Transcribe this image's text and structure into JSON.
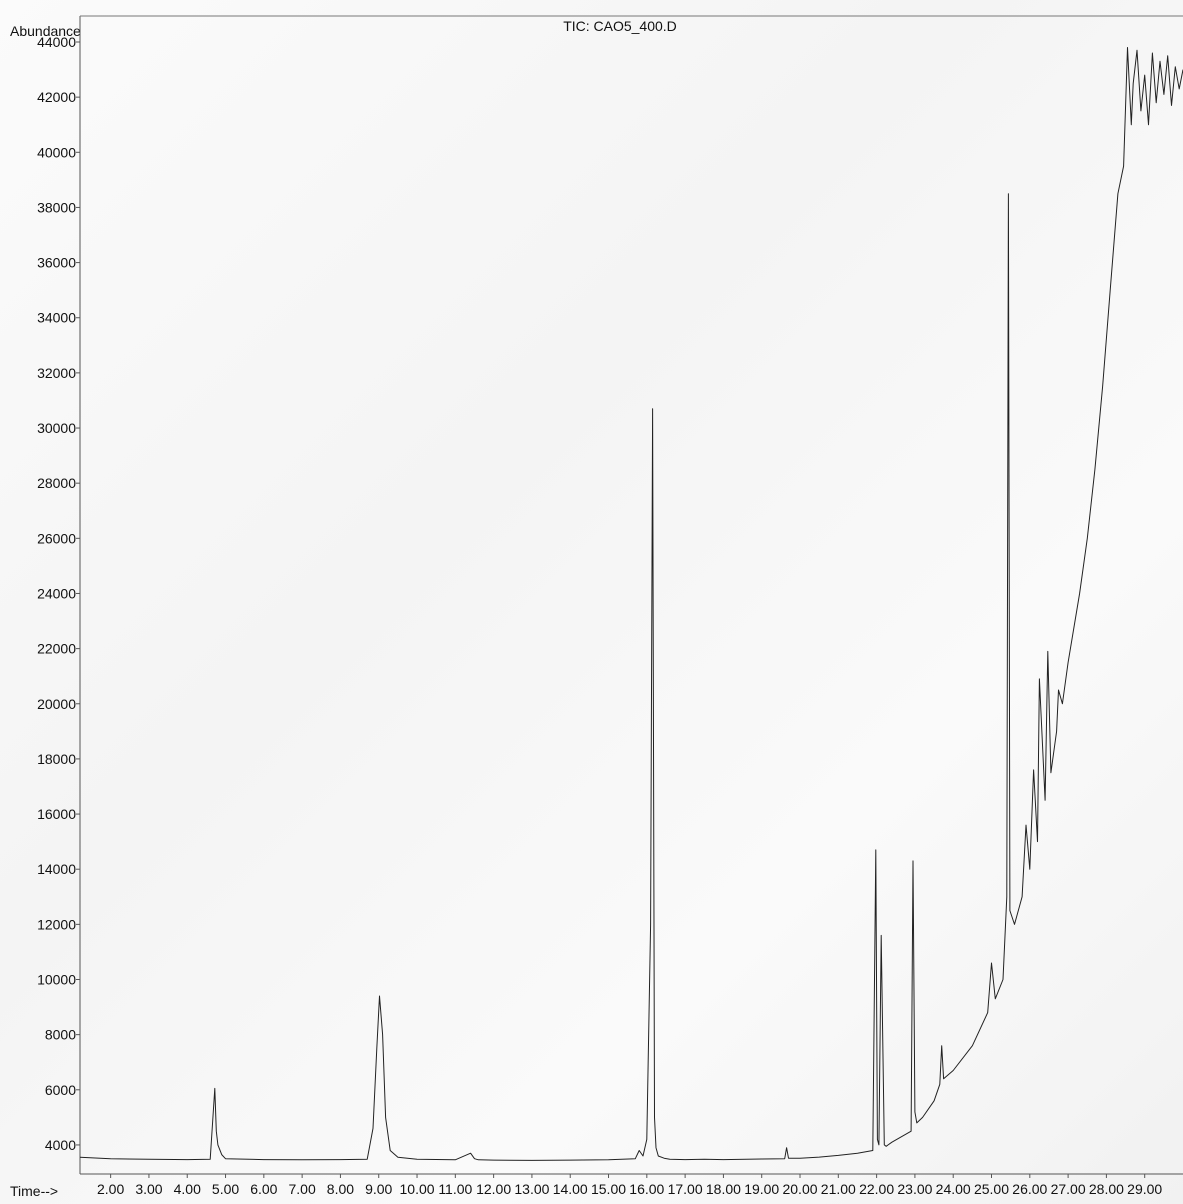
{
  "chart_data": {
    "type": "line",
    "title": "TIC: CAO5_400.D",
    "ylabel": "Abundance",
    "xlabel": "Time-->",
    "xlim": [
      1.2,
      30.0
    ],
    "ylim": [
      3200,
      44000
    ],
    "x_ticks": [
      "2.00",
      "3.00",
      "4.00",
      "5.00",
      "6.00",
      "7.00",
      "8.00",
      "9.00",
      "10.00",
      "11.00",
      "12.00",
      "13.00",
      "14.00",
      "15.00",
      "16.00",
      "17.00",
      "18.00",
      "19.00",
      "20.00",
      "21.00",
      "22.00",
      "23.00",
      "24.00",
      "25.00",
      "26.00",
      "27.00",
      "28.00",
      "29.00"
    ],
    "y_ticks": [
      "4000",
      "6000",
      "8000",
      "10000",
      "12000",
      "14000",
      "16000",
      "18000",
      "20000",
      "22000",
      "24000",
      "26000",
      "28000",
      "30000",
      "32000",
      "34000",
      "36000",
      "38000",
      "40000",
      "42000",
      "44000"
    ],
    "grid": false,
    "series": [
      {
        "color": "#222222",
        "x": [
          1.2,
          2.0,
          3.0,
          4.0,
          4.6,
          4.72,
          4.76,
          4.8,
          4.9,
          5.0,
          6.0,
          7.0,
          8.0,
          8.7,
          8.85,
          8.95,
          9.02,
          9.1,
          9.18,
          9.3,
          9.5,
          10.0,
          11.0,
          11.4,
          11.5,
          11.6,
          12.0,
          13.0,
          14.0,
          15.0,
          15.7,
          15.8,
          15.9,
          16.0,
          16.1,
          16.15,
          16.2,
          16.24,
          16.3,
          16.45,
          16.6,
          17.0,
          17.5,
          18.0,
          19.0,
          19.6,
          19.65,
          19.7,
          20.0,
          20.5,
          21.0,
          21.5,
          21.9,
          21.98,
          22.02,
          22.06,
          22.12,
          22.2,
          22.25,
          22.3,
          22.4,
          22.9,
          22.95,
          23.0,
          23.05,
          23.2,
          23.5,
          23.65,
          23.7,
          23.75,
          24.0,
          24.5,
          24.9,
          25.0,
          25.1,
          25.3,
          25.4,
          25.44,
          25.48,
          25.6,
          25.8,
          25.9,
          26.0,
          26.1,
          26.2,
          26.25,
          26.4,
          26.47,
          26.55,
          26.7,
          26.75,
          26.85,
          27.0,
          27.3,
          27.5,
          27.7,
          27.9,
          28.1,
          28.3,
          28.45,
          28.55,
          28.65,
          28.7,
          28.8,
          28.9,
          29.0,
          29.1,
          29.2,
          29.3,
          29.4,
          29.5,
          29.6,
          29.7,
          29.8,
          29.9,
          30.0
        ],
        "y": [
          3550,
          3500,
          3480,
          3470,
          3480,
          6050,
          4500,
          4000,
          3650,
          3500,
          3470,
          3460,
          3470,
          3480,
          4600,
          7500,
          9400,
          8000,
          5000,
          3800,
          3550,
          3480,
          3460,
          3700,
          3500,
          3460,
          3450,
          3440,
          3450,
          3460,
          3500,
          3800,
          3600,
          4200,
          12000,
          30700,
          5000,
          3900,
          3600,
          3520,
          3480,
          3470,
          3480,
          3470,
          3490,
          3500,
          3900,
          3520,
          3520,
          3560,
          3620,
          3700,
          3800,
          14700,
          4200,
          4000,
          11600,
          4000,
          3950,
          4000,
          4100,
          4500,
          14300,
          5200,
          4800,
          5000,
          5600,
          6200,
          7600,
          6400,
          6700,
          7600,
          8800,
          10600,
          9300,
          10000,
          13000,
          38500,
          12500,
          12000,
          13000,
          15600,
          14000,
          17600,
          15000,
          20900,
          16500,
          21900,
          17500,
          19000,
          20500,
          20000,
          21500,
          24000,
          26000,
          28500,
          31500,
          35000,
          38500,
          39500,
          43800,
          41000,
          42500,
          43700,
          41500,
          42800,
          41000,
          43600,
          41800,
          43300,
          42100,
          43500,
          41700,
          43100,
          42300,
          43000
        ]
      }
    ]
  }
}
